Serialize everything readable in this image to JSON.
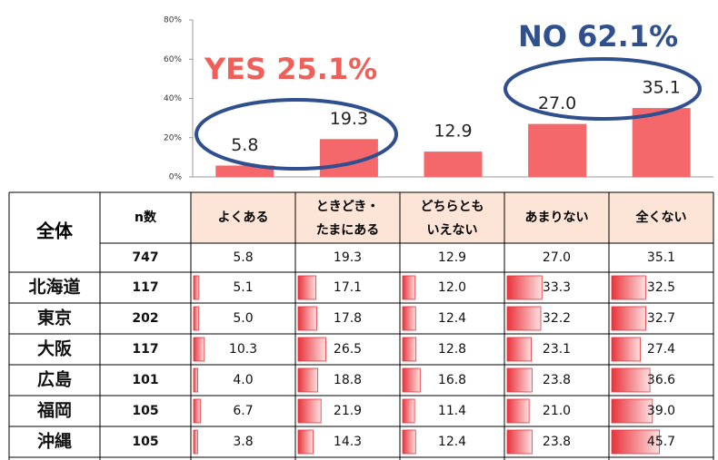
{
  "chart_data": {
    "type": "bar",
    "categories": [
      null,
      null,
      null,
      null,
      null
    ],
    "values": [
      5.8,
      19.3,
      12.9,
      27.0,
      35.1
    ],
    "value_labels": [
      "5.8",
      "19.3",
      "12.9",
      "27.0",
      "35.1"
    ],
    "color": "#f4676a",
    "ylim": [
      0,
      80
    ],
    "yticks": [
      {
        "value": 0,
        "label": "0%"
      },
      {
        "value": 20,
        "label": "20%"
      },
      {
        "value": 40,
        "label": "40%"
      },
      {
        "value": 60,
        "label": "60%"
      },
      {
        "value": 80,
        "label": "80%"
      }
    ],
    "annotations": [
      "YES 25.1%",
      "NO 62.1%"
    ]
  },
  "table": {
    "header": [
      "全体",
      "n数",
      [
        "よくある"
      ],
      [
        "ときどき・",
        "たまにある"
      ],
      [
        "どちらとも",
        "いえない"
      ],
      [
        "あまりない"
      ],
      [
        "全くない"
      ]
    ],
    "total": [
      "747",
      "5.8",
      "19.3",
      "12.9",
      "27.0",
      "35.1"
    ],
    "rows": [
      [
        "北海道",
        "117",
        "5.1",
        "17.1",
        "12.0",
        "33.3",
        "32.5"
      ],
      [
        "東京",
        "202",
        "5.0",
        "17.8",
        "12.4",
        "32.2",
        "32.7"
      ],
      [
        "大阪",
        "117",
        "10.3",
        "26.5",
        "12.8",
        "23.1",
        "27.4"
      ],
      [
        "広島",
        "101",
        "4.0",
        "18.8",
        "16.8",
        "23.8",
        "36.6"
      ],
      [
        "福岡",
        "105",
        "6.7",
        "21.9",
        "11.4",
        "21.0",
        "39.0"
      ],
      [
        "沖縄",
        "105",
        "3.8",
        "14.3",
        "12.4",
        "23.8",
        "45.7"
      ]
    ]
  }
}
